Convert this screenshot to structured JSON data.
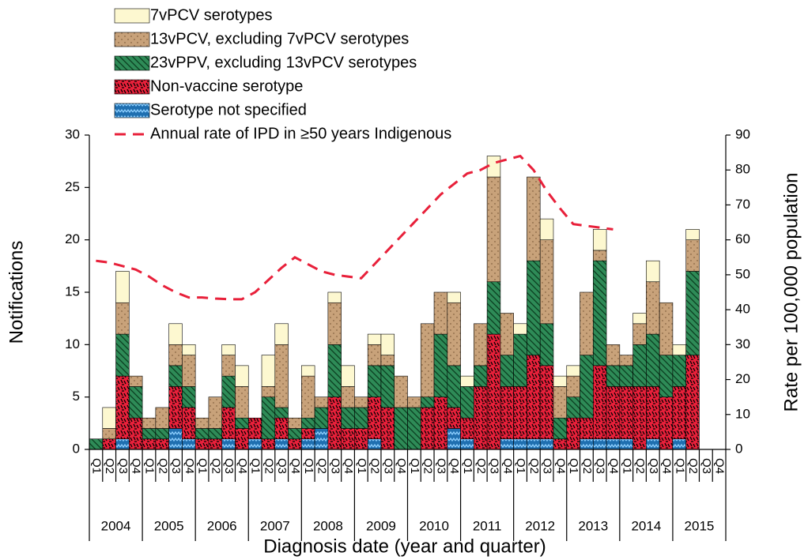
{
  "chart_data": {
    "type": "stacked_bar",
    "xlabel": "Diagnosis date (year and quarter)",
    "ylabel": "Notifications",
    "y2label": "Rate per 100,000 population",
    "categories": [
      "Q1",
      "Q2",
      "Q3",
      "Q4",
      "Q1",
      "Q2",
      "Q3",
      "Q4",
      "Q1",
      "Q2",
      "Q3",
      "Q4",
      "Q1",
      "Q2",
      "Q3",
      "Q4",
      "Q1",
      "Q2",
      "Q3",
      "Q4",
      "Q1",
      "Q2",
      "Q3",
      "Q4",
      "Q1",
      "Q2",
      "Q3",
      "Q4",
      "Q1",
      "Q2",
      "Q3",
      "Q4",
      "Q1",
      "Q2",
      "Q3",
      "Q4",
      "Q1",
      "Q2",
      "Q3",
      "Q4",
      "Q1",
      "Q2",
      "Q3",
      "Q4",
      "Q1",
      "Q2",
      "Q3",
      "Q4"
    ],
    "years": [
      "2004",
      "2005",
      "2006",
      "2007",
      "2008",
      "2009",
      "2010",
      "2011",
      "2012",
      "2013",
      "2014",
      "2015"
    ],
    "series": [
      {
        "name": "Serotype not specified",
        "color": "#1f6fb0",
        "values": [
          0,
          0,
          1,
          0,
          0,
          0,
          2,
          1,
          0,
          0,
          1,
          0,
          1,
          0,
          1,
          0,
          1,
          2,
          0,
          0,
          0,
          1,
          0,
          0,
          0,
          0,
          0,
          2,
          1,
          0,
          0,
          1,
          1,
          1,
          1,
          0,
          0,
          1,
          1,
          1,
          1,
          0,
          1,
          0,
          1,
          0,
          0,
          0
        ]
      },
      {
        "name": "Non-vaccine serotype",
        "color": "#e8203a",
        "values": [
          0,
          1,
          6,
          3,
          1,
          1,
          4,
          3,
          1,
          1,
          3,
          2,
          2,
          1,
          2,
          1,
          1,
          0,
          5,
          2,
          2,
          4,
          4,
          0,
          0,
          4,
          5,
          2,
          2,
          6,
          11,
          5,
          5,
          8,
          7,
          1,
          3,
          2,
          7,
          5,
          5,
          6,
          5,
          5,
          5,
          9,
          0,
          0
        ]
      },
      {
        "name": "23vPPV, excluding 13vPCV serotypes",
        "color": "#2e8b57",
        "values": [
          1,
          0,
          4,
          3,
          1,
          1,
          2,
          2,
          1,
          1,
          3,
          1,
          0,
          4,
          1,
          1,
          1,
          2,
          5,
          2,
          2,
          3,
          4,
          4,
          4,
          1,
          6,
          4,
          3,
          2,
          5,
          3,
          5,
          9,
          4,
          2,
          2,
          6,
          10,
          2,
          2,
          4,
          5,
          4,
          3,
          8,
          0,
          0
        ]
      },
      {
        "name": "13vPCV, excluding 7vPCV serotypes",
        "color": "#c8a27a",
        "values": [
          0,
          1,
          3,
          1,
          1,
          2,
          2,
          3,
          1,
          3,
          2,
          3,
          0,
          1,
          6,
          1,
          4,
          1,
          4,
          2,
          1,
          2,
          1,
          3,
          1,
          7,
          4,
          6,
          0,
          4,
          10,
          4,
          0,
          8,
          8,
          3,
          2,
          6,
          1,
          2,
          1,
          2,
          5,
          5,
          0,
          3,
          0,
          0
        ]
      },
      {
        "name": "7vPCV serotypes",
        "color": "#fdf8d0",
        "values": [
          0,
          2,
          3,
          0,
          0,
          0,
          2,
          1,
          0,
          0,
          1,
          2,
          0,
          3,
          2,
          0,
          1,
          0,
          1,
          2,
          0,
          1,
          2,
          0,
          0,
          0,
          0,
          1,
          1,
          0,
          2,
          0,
          1,
          0,
          2,
          1,
          1,
          0,
          2,
          0,
          0,
          1,
          2,
          0,
          1,
          1,
          0,
          0
        ]
      }
    ],
    "line_series": {
      "name": "Annual rate of IPD in ≥50 years Indigenous",
      "color": "#e8203a",
      "axis": "y2",
      "values": [
        54,
        53.5,
        52.5,
        51.5,
        49.5,
        47,
        45,
        43.5,
        43.5,
        43.2,
        43,
        43,
        45,
        48.5,
        52,
        55,
        53,
        51,
        50,
        49.5,
        49,
        53,
        57,
        61,
        65,
        69,
        73,
        76,
        79,
        80,
        82,
        83,
        84,
        80,
        74,
        69,
        64.5,
        64,
        63.5,
        63,
        null,
        null,
        null,
        null,
        null,
        null,
        null,
        null
      ]
    },
    "ylim": [
      0,
      30
    ],
    "yticks": [
      0,
      5,
      10,
      15,
      20,
      25,
      30
    ],
    "y2lim": [
      0,
      90
    ],
    "y2ticks": [
      0,
      10,
      20,
      30,
      40,
      50,
      60,
      70,
      80,
      90
    ]
  }
}
